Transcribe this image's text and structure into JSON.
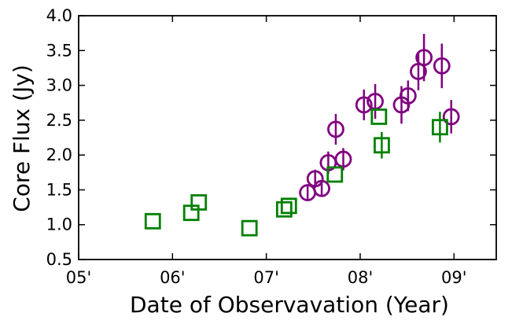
{
  "chart_data": {
    "type": "scatter",
    "title": "",
    "xlabel": "Date of Observavation (Year)",
    "ylabel": "Core Flux (Jy)",
    "xlim": [
      2005.0,
      2009.45
    ],
    "ylim": [
      0.5,
      4.0
    ],
    "x_ticks": [
      {
        "value": 2005,
        "label": "05'"
      },
      {
        "value": 2006,
        "label": "06'"
      },
      {
        "value": 2007,
        "label": "07'"
      },
      {
        "value": 2008,
        "label": "08'"
      },
      {
        "value": 2009,
        "label": "09'"
      }
    ],
    "y_ticks": [
      {
        "value": 0.5,
        "label": "0.5"
      },
      {
        "value": 1.0,
        "label": "1.0"
      },
      {
        "value": 1.5,
        "label": "1.5"
      },
      {
        "value": 2.0,
        "label": "2.0"
      },
      {
        "value": 2.5,
        "label": "2.5"
      },
      {
        "value": 3.0,
        "label": "3.0"
      },
      {
        "value": 3.5,
        "label": "3.5"
      },
      {
        "value": 4.0,
        "label": "4.0"
      }
    ],
    "series": [
      {
        "name": "purple circles",
        "marker": "circle",
        "color": "#800080",
        "points": [
          {
            "x": 2007.44,
            "y": 1.46,
            "err": 0.12
          },
          {
            "x": 2007.52,
            "y": 1.66,
            "err": 0.13
          },
          {
            "x": 2007.59,
            "y": 1.52,
            "err": 0.12
          },
          {
            "x": 2007.66,
            "y": 1.89,
            "err": 0.16
          },
          {
            "x": 2007.74,
            "y": 2.37,
            "err": 0.22
          },
          {
            "x": 2007.82,
            "y": 1.94,
            "err": 0.16
          },
          {
            "x": 2008.04,
            "y": 2.72,
            "err": 0.22
          },
          {
            "x": 2008.16,
            "y": 2.77,
            "err": 0.25
          },
          {
            "x": 2008.44,
            "y": 2.72,
            "err": 0.27
          },
          {
            "x": 2008.51,
            "y": 2.85,
            "err": 0.22
          },
          {
            "x": 2008.62,
            "y": 3.2,
            "err": 0.27
          },
          {
            "x": 2008.68,
            "y": 3.4,
            "err": 0.34
          },
          {
            "x": 2008.87,
            "y": 3.28,
            "err": 0.32
          },
          {
            "x": 2008.97,
            "y": 2.55,
            "err": 0.24
          }
        ]
      },
      {
        "name": "green squares",
        "marker": "square",
        "color": "#008000",
        "points": [
          {
            "x": 2005.79,
            "y": 1.05,
            "err": 0.0
          },
          {
            "x": 2006.2,
            "y": 1.17,
            "err": 0.0
          },
          {
            "x": 2006.28,
            "y": 1.32,
            "err": 0.0
          },
          {
            "x": 2006.82,
            "y": 0.95,
            "err": 0.0
          },
          {
            "x": 2007.19,
            "y": 1.22,
            "err": 0.0
          },
          {
            "x": 2007.24,
            "y": 1.27,
            "err": 0.0
          },
          {
            "x": 2007.73,
            "y": 1.72,
            "err": 0.0
          },
          {
            "x": 2008.2,
            "y": 2.55,
            "err": 0.0
          },
          {
            "x": 2008.23,
            "y": 2.14,
            "err": 0.19
          },
          {
            "x": 2008.85,
            "y": 2.4,
            "err": 0.22
          }
        ]
      }
    ]
  }
}
